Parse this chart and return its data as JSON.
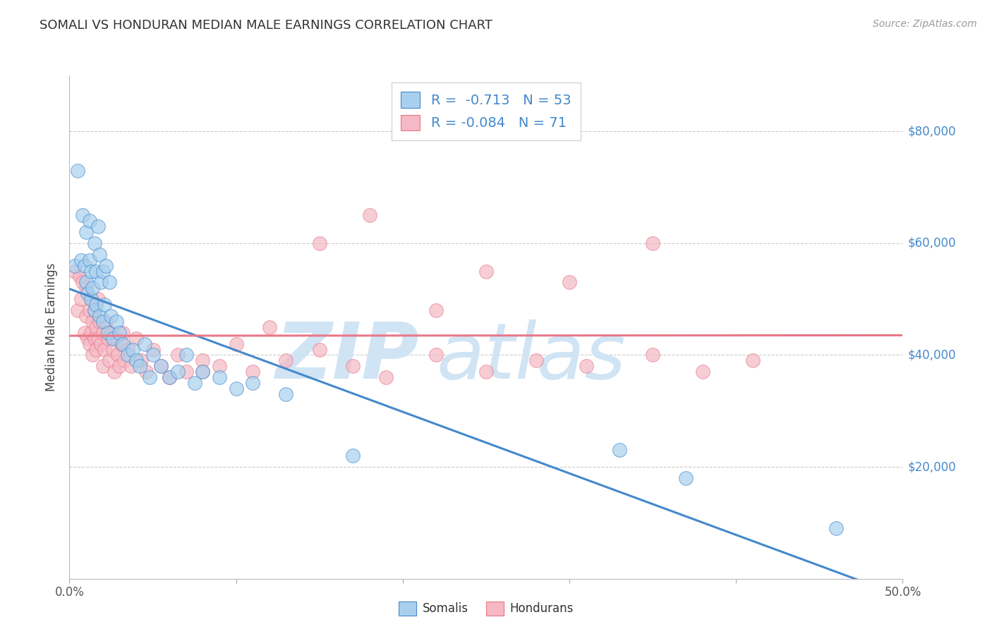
{
  "title": "SOMALI VS HONDURAN MEDIAN MALE EARNINGS CORRELATION CHART",
  "source": "Source: ZipAtlas.com",
  "ylabel": "Median Male Earnings",
  "xlim": [
    0.0,
    0.5
  ],
  "ylim": [
    0,
    90000
  ],
  "yticks": [
    0,
    20000,
    40000,
    60000,
    80000
  ],
  "xticks": [
    0.0,
    0.1,
    0.2,
    0.3,
    0.4,
    0.5
  ],
  "xtick_labels": [
    "0.0%",
    "",
    "",
    "",
    "",
    "50.0%"
  ],
  "somali_R": -0.713,
  "somali_N": 53,
  "honduran_R": -0.084,
  "honduran_N": 71,
  "somali_color": "#A8D0EE",
  "honduran_color": "#F5B8C4",
  "somali_line_color": "#4488CC",
  "honduran_line_color": "#E87888",
  "watermark_color": "#D0E4F4",
  "legend_color": "#4488CC",
  "somali_x": [
    0.003,
    0.005,
    0.007,
    0.008,
    0.009,
    0.01,
    0.01,
    0.011,
    0.012,
    0.012,
    0.013,
    0.013,
    0.014,
    0.015,
    0.015,
    0.016,
    0.016,
    0.017,
    0.018,
    0.018,
    0.019,
    0.02,
    0.02,
    0.021,
    0.022,
    0.023,
    0.024,
    0.025,
    0.026,
    0.028,
    0.03,
    0.032,
    0.035,
    0.038,
    0.04,
    0.042,
    0.045,
    0.048,
    0.05,
    0.055,
    0.06,
    0.065,
    0.07,
    0.075,
    0.08,
    0.09,
    0.1,
    0.11,
    0.13,
    0.17,
    0.33,
    0.37,
    0.46
  ],
  "somali_y": [
    56000,
    73000,
    57000,
    65000,
    56000,
    53000,
    62000,
    51000,
    57000,
    64000,
    50000,
    55000,
    52000,
    48000,
    60000,
    55000,
    49000,
    63000,
    47000,
    58000,
    53000,
    46000,
    55000,
    49000,
    56000,
    44000,
    53000,
    47000,
    43000,
    46000,
    44000,
    42000,
    40000,
    41000,
    39000,
    38000,
    42000,
    36000,
    40000,
    38000,
    36000,
    37000,
    40000,
    35000,
    37000,
    36000,
    34000,
    35000,
    33000,
    22000,
    23000,
    18000,
    9000
  ],
  "honduran_x": [
    0.003,
    0.005,
    0.006,
    0.007,
    0.008,
    0.009,
    0.01,
    0.01,
    0.011,
    0.012,
    0.012,
    0.013,
    0.013,
    0.014,
    0.014,
    0.015,
    0.015,
    0.016,
    0.016,
    0.017,
    0.017,
    0.018,
    0.019,
    0.02,
    0.02,
    0.021,
    0.022,
    0.023,
    0.024,
    0.025,
    0.026,
    0.027,
    0.028,
    0.029,
    0.03,
    0.031,
    0.032,
    0.033,
    0.035,
    0.037,
    0.04,
    0.043,
    0.046,
    0.05,
    0.055,
    0.06,
    0.065,
    0.07,
    0.08,
    0.09,
    0.1,
    0.11,
    0.13,
    0.15,
    0.17,
    0.19,
    0.22,
    0.25,
    0.28,
    0.31,
    0.35,
    0.38,
    0.41,
    0.15,
    0.18,
    0.25,
    0.3,
    0.22,
    0.12,
    0.08,
    0.35
  ],
  "honduran_y": [
    55000,
    48000,
    54000,
    50000,
    53000,
    44000,
    47000,
    52000,
    43000,
    48000,
    42000,
    50000,
    44000,
    46000,
    40000,
    43000,
    48000,
    45000,
    41000,
    50000,
    43000,
    46000,
    42000,
    44000,
    38000,
    41000,
    46000,
    43000,
    39000,
    44000,
    41000,
    37000,
    43000,
    40000,
    38000,
    42000,
    44000,
    39000,
    41000,
    38000,
    43000,
    39000,
    37000,
    41000,
    38000,
    36000,
    40000,
    37000,
    39000,
    38000,
    42000,
    37000,
    39000,
    41000,
    38000,
    36000,
    40000,
    37000,
    39000,
    38000,
    40000,
    37000,
    39000,
    60000,
    65000,
    55000,
    53000,
    48000,
    45000,
    37000,
    60000
  ]
}
